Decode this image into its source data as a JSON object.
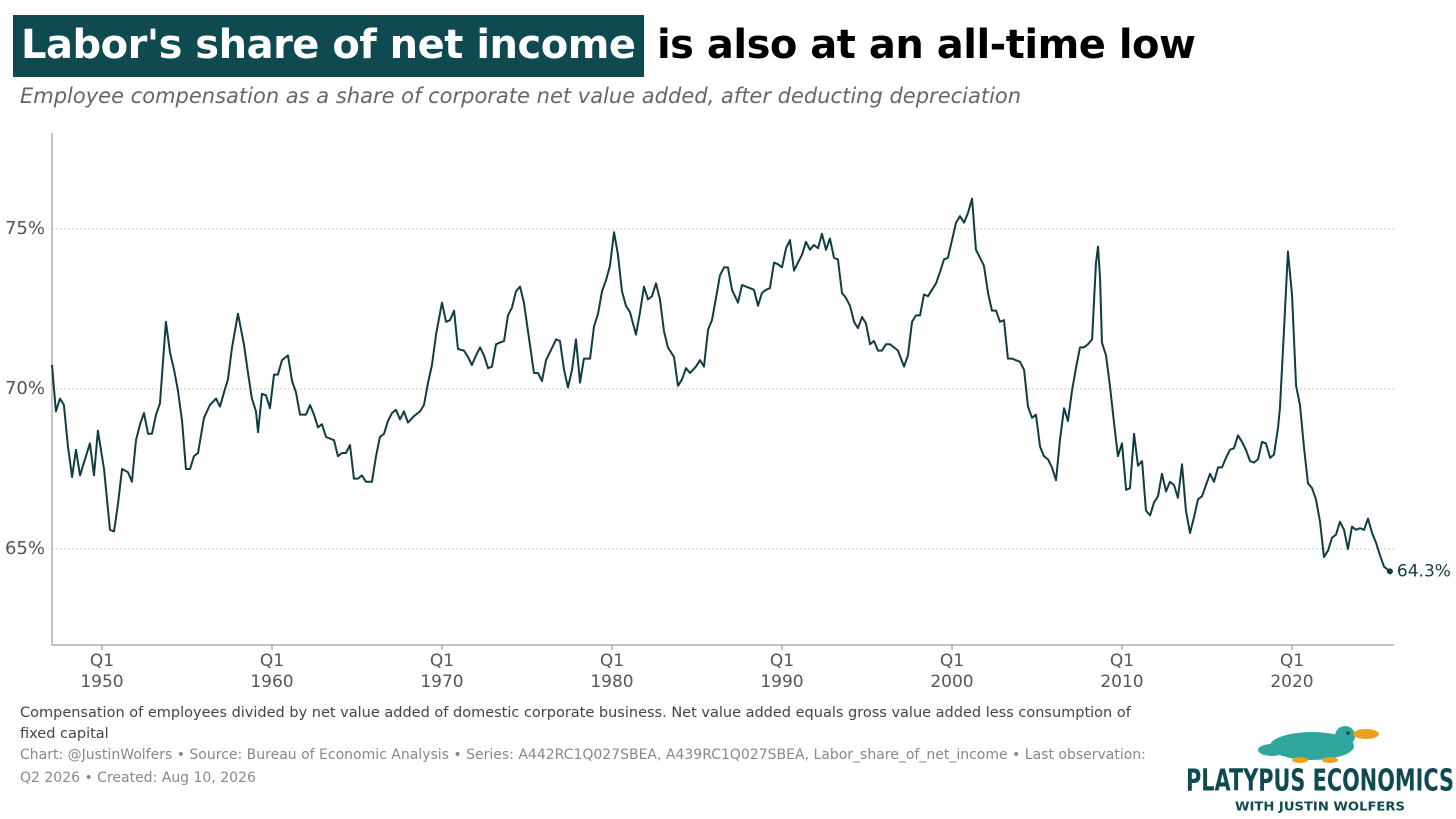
{
  "chart_data": {
    "type": "line",
    "title_highlight": "Labor's share of net income",
    "title_rest": " is also at an all-time low",
    "subtitle": "Employee compensation as a share of corporate net value added, after deducting depreciation",
    "note": "Compensation of employees divided by net value added of domestic corporate business. Net value added equals gross value added less consumption of fixed capital",
    "source": "Chart: @JustinWolfers • Source: Bureau of Economic Analysis • Series: A442RC1Q027SBEA, A439RC1Q027SBEA, Labor_share_of_net_income • Last observation: Q2 2026 • Created: Aug 10, 2026",
    "logo": {
      "name": "PLATYPUS ECONOMICS",
      "tagline": "WITH JUSTIN WOLFERS"
    },
    "color": "#0f3d42",
    "grid": true,
    "xlim": [
      1947.06,
      2026.0
    ],
    "ylim": [
      62,
      78
    ],
    "yticks": [
      {
        "value": 65,
        "label": "65%"
      },
      {
        "value": 70,
        "label": "70%"
      },
      {
        "value": 75,
        "label": "75%"
      }
    ],
    "xticks": [
      1950,
      1960,
      1970,
      1980,
      1990,
      2000,
      2010,
      2020
    ],
    "xtick_quarter": "Q1",
    "x": [
      1947.06,
      1947.29,
      1947.53,
      1947.76,
      1948,
      1948.24,
      1948.47,
      1948.71,
      1948.94,
      1949.29,
      1949.53,
      1949.76,
      1950.12,
      1950.47,
      1950.71,
      1950.94,
      1951.18,
      1951.53,
      1951.76,
      1952,
      1952.24,
      1952.47,
      1952.71,
      1952.94,
      1953.18,
      1953.41,
      1953.76,
      1954,
      1954.24,
      1954.47,
      1954.71,
      1954.94,
      1955.18,
      1955.41,
      1955.65,
      1956,
      1956.35,
      1956.71,
      1956.94,
      1957.18,
      1957.41,
      1957.65,
      1958,
      1958.35,
      1958.59,
      1958.82,
      1959.06,
      1959.18,
      1959.41,
      1959.65,
      1959.88,
      1960.12,
      1960.35,
      1960.59,
      1960.94,
      1961.18,
      1961.41,
      1961.65,
      1962,
      1962.24,
      1962.47,
      1962.71,
      1962.94,
      1963.18,
      1963.41,
      1963.65,
      1963.88,
      1964.12,
      1964.35,
      1964.59,
      1964.82,
      1965.06,
      1965.29,
      1965.53,
      1965.88,
      1966.12,
      1966.35,
      1966.59,
      1966.82,
      1967.06,
      1967.29,
      1967.53,
      1967.76,
      1968,
      1968.35,
      1968.71,
      1968.94,
      1969.18,
      1969.41,
      1969.65,
      1970,
      1970.24,
      1970.47,
      1970.71,
      1970.94,
      1971.29,
      1971.53,
      1971.76,
      1972,
      1972.24,
      1972.47,
      1972.71,
      1972.94,
      1973.18,
      1973.41,
      1973.65,
      1973.88,
      1974.12,
      1974.35,
      1974.59,
      1974.82,
      1975.06,
      1975.41,
      1975.65,
      1975.88,
      1976.12,
      1976.35,
      1976.71,
      1976.94,
      1977.18,
      1977.41,
      1977.65,
      1977.88,
      1978.12,
      1978.35,
      1978.71,
      1978.94,
      1979.18,
      1979.41,
      1979.65,
      1979.88,
      1980.12,
      1980.35,
      1980.59,
      1980.82,
      1981.06,
      1981.41,
      1981.65,
      1981.88,
      1982.12,
      1982.35,
      1982.59,
      1982.82,
      1983.06,
      1983.29,
      1983.65,
      1983.88,
      1984.12,
      1984.35,
      1984.59,
      1984.94,
      1985.18,
      1985.41,
      1985.65,
      1985.88,
      1986.12,
      1986.35,
      1986.59,
      1986.82,
      1987.06,
      1987.41,
      1987.65,
      1987.88,
      1988.12,
      1988.35,
      1988.59,
      1988.82,
      1989.06,
      1989.29,
      1989.53,
      1989.76,
      1990,
      1990.24,
      1990.47,
      1990.71,
      1990.94,
      1991.18,
      1991.41,
      1991.65,
      1991.88,
      1992.12,
      1992.35,
      1992.59,
      1992.82,
      1993.06,
      1993.29,
      1993.53,
      1993.76,
      1994,
      1994.24,
      1994.47,
      1994.71,
      1994.94,
      1995.18,
      1995.41,
      1995.65,
      1995.88,
      1996.12,
      1996.35,
      1996.59,
      1996.82,
      1997.18,
      1997.41,
      1997.65,
      1997.88,
      1998.12,
      1998.35,
      1998.59,
      1998.82,
      1999.06,
      1999.29,
      1999.53,
      1999.76,
      2000,
      2000.24,
      2000.47,
      2000.71,
      2000.94,
      2001.18,
      2001.41,
      2001.65,
      2001.88,
      2002.12,
      2002.35,
      2002.59,
      2002.82,
      2003.06,
      2003.29,
      2003.53,
      2003.76,
      2004,
      2004.24,
      2004.47,
      2004.71,
      2004.94,
      2005.18,
      2005.41,
      2005.65,
      2005.88,
      2006.12,
      2006.35,
      2006.59,
      2006.82,
      2007.06,
      2007.29,
      2007.53,
      2007.76,
      2008,
      2008.24,
      2008.47,
      2008.59,
      2008.71,
      2008.82,
      2009.06,
      2009.29,
      2009.53,
      2009.76,
      2010,
      2010.24,
      2010.47,
      2010.71,
      2010.94,
      2011.18,
      2011.41,
      2011.65,
      2011.88,
      2012.12,
      2012.35,
      2012.59,
      2012.82,
      2013.06,
      2013.29,
      2013.53,
      2013.76,
      2014,
      2014.24,
      2014.47,
      2014.71,
      2014.94,
      2015.18,
      2015.41,
      2015.65,
      2015.88,
      2016.12,
      2016.35,
      2016.59,
      2016.82,
      2017.06,
      2017.29,
      2017.53,
      2017.76,
      2018,
      2018.24,
      2018.47,
      2018.71,
      2018.94,
      2019.18,
      2019.29,
      2019.53,
      2019.76,
      2020,
      2020.24,
      2020.47,
      2020.71,
      2020.94,
      2021.18,
      2021.41,
      2021.65,
      2021.88,
      2022.12,
      2022.35,
      2022.59,
      2022.82,
      2023.06,
      2023.29,
      2023.53,
      2023.76,
      2024,
      2024.24,
      2024.47,
      2024.71,
      2024.94,
      2025.18,
      2025.41,
      2025.76
    ],
    "values": [
      70.75,
      69.3,
      69.7,
      69.5,
      68.2,
      67.25,
      68.1,
      67.3,
      67.7,
      68.3,
      67.3,
      68.7,
      67.5,
      65.6,
      65.55,
      66.4,
      67.5,
      67.4,
      67.1,
      68.4,
      68.9,
      69.25,
      68.6,
      68.6,
      69.2,
      69.55,
      72.1,
      71.15,
      70.6,
      69.95,
      69.0,
      67.5,
      67.5,
      67.9,
      68.0,
      69.1,
      69.5,
      69.7,
      69.45,
      69.9,
      70.3,
      71.3,
      72.35,
      71.4,
      70.5,
      69.7,
      69.3,
      68.65,
      69.85,
      69.8,
      69.4,
      70.45,
      70.45,
      70.9,
      71.05,
      70.25,
      69.9,
      69.2,
      69.2,
      69.5,
      69.2,
      68.8,
      68.9,
      68.5,
      68.45,
      68.4,
      67.9,
      68.0,
      68.0,
      68.25,
      67.2,
      67.2,
      67.3,
      67.1,
      67.1,
      67.9,
      68.5,
      68.6,
      69.0,
      69.25,
      69.35,
      69.05,
      69.3,
      68.95,
      69.15,
      69.3,
      69.5,
      70.2,
      70.75,
      71.7,
      72.7,
      72.1,
      72.15,
      72.45,
      71.25,
      71.2,
      71.0,
      70.75,
      71.05,
      71.3,
      71.05,
      70.65,
      70.7,
      71.4,
      71.45,
      71.5,
      72.3,
      72.55,
      73.05,
      73.2,
      72.7,
      71.8,
      70.5,
      70.5,
      70.25,
      70.9,
      71.15,
      71.55,
      71.5,
      70.6,
      70.05,
      70.6,
      71.55,
      70.2,
      70.95,
      70.95,
      71.95,
      72.35,
      73.05,
      73.4,
      73.85,
      74.9,
      74.2,
      73.05,
      72.6,
      72.4,
      71.7,
      72.4,
      73.2,
      72.8,
      72.9,
      73.3,
      72.8,
      71.8,
      71.3,
      71.0,
      70.1,
      70.3,
      70.65,
      70.5,
      70.7,
      70.9,
      70.7,
      71.85,
      72.15,
      72.85,
      73.55,
      73.8,
      73.8,
      73.1,
      72.7,
      73.25,
      73.2,
      73.15,
      73.1,
      72.6,
      73.0,
      73.1,
      73.15,
      73.95,
      73.9,
      73.8,
      74.4,
      74.65,
      73.7,
      73.95,
      74.2,
      74.6,
      74.35,
      74.5,
      74.4,
      74.85,
      74.35,
      74.7,
      74.1,
      74.05,
      73.0,
      72.85,
      72.6,
      72.1,
      71.9,
      72.25,
      72.05,
      71.4,
      71.5,
      71.2,
      71.2,
      71.4,
      71.4,
      71.3,
      71.2,
      70.7,
      71.05,
      72.1,
      72.3,
      72.3,
      72.95,
      72.9,
      73.1,
      73.3,
      73.65,
      74.05,
      74.1,
      74.65,
      75.2,
      75.4,
      75.2,
      75.5,
      75.95,
      74.35,
      74.1,
      73.85,
      73.0,
      72.45,
      72.45,
      72.1,
      72.15,
      70.95,
      70.95,
      70.9,
      70.85,
      70.6,
      69.45,
      69.1,
      69.2,
      68.2,
      67.9,
      67.8,
      67.55,
      67.15,
      68.4,
      69.4,
      69.0,
      69.95,
      70.65,
      71.3,
      71.3,
      71.4,
      71.55,
      73.95,
      74.45,
      73.45,
      71.45,
      71.05,
      70.1,
      68.95,
      67.9,
      68.3,
      66.85,
      66.9,
      68.6,
      67.6,
      67.75,
      66.2,
      66.05,
      66.45,
      66.65,
      67.35,
      66.8,
      67.1,
      67.0,
      66.6,
      67.65,
      66.2,
      65.5,
      66.0,
      66.55,
      66.65,
      67.0,
      67.35,
      67.1,
      67.55,
      67.55,
      67.85,
      68.1,
      68.15,
      68.55,
      68.35,
      68.1,
      67.75,
      67.7,
      67.8,
      68.35,
      68.3,
      67.85,
      67.95,
      68.8,
      69.4,
      71.85,
      74.3,
      72.95,
      70.1,
      69.5,
      68.15,
      67.05,
      66.9,
      66.55,
      65.85,
      64.75,
      64.95,
      65.35,
      65.45,
      65.85,
      65.6,
      65.0,
      65.7,
      65.6,
      65.65,
      65.6,
      65.95,
      65.5,
      65.2,
      64.8,
      64.45,
      64.3
    ],
    "value_labels": [
      null,
      null,
      null,
      null,
      null,
      null,
      null,
      null,
      null,
      null,
      null,
      null,
      null,
      null,
      null,
      null,
      null,
      null,
      null,
      null,
      null,
      null,
      null,
      null,
      null,
      null,
      null,
      null,
      null,
      null,
      null,
      null,
      null,
      null,
      null,
      null,
      null,
      null,
      null,
      null,
      null,
      null,
      null,
      null,
      null,
      null,
      null,
      null,
      null,
      null,
      null,
      null,
      null,
      null,
      null,
      null,
      null,
      null,
      null,
      null,
      null,
      null,
      null,
      null,
      null,
      null,
      null,
      null,
      null,
      null,
      null,
      null,
      null,
      null,
      null,
      null,
      null,
      null,
      null,
      null,
      null,
      null,
      null,
      null,
      null,
      null,
      null,
      null,
      null,
      null,
      null,
      null,
      null,
      null,
      null,
      null,
      null,
      null,
      null,
      null,
      null,
      null,
      null,
      null,
      null,
      null,
      null,
      null,
      null,
      null,
      null,
      null,
      null,
      null,
      null,
      null,
      null,
      null,
      null,
      null,
      null,
      null,
      null,
      null,
      null,
      null,
      null,
      null,
      null,
      null,
      null,
      null,
      null,
      null,
      null,
      null,
      null,
      null,
      null,
      null,
      null,
      null,
      null,
      null,
      null,
      null,
      null,
      null,
      null,
      null,
      null,
      null,
      null,
      null,
      null,
      null,
      null,
      null,
      null,
      null,
      null,
      null,
      null,
      null,
      null,
      null,
      null,
      null,
      null,
      null,
      null,
      null,
      null,
      null,
      null,
      null,
      null,
      null,
      null,
      null,
      null,
      null,
      null,
      null,
      null,
      null,
      null,
      null,
      null,
      null,
      null,
      null,
      null,
      null,
      null,
      null,
      null,
      null,
      null,
      null,
      null,
      null,
      null,
      null,
      null,
      null,
      null,
      null,
      null,
      null,
      null,
      null,
      null,
      null,
      null,
      null,
      null,
      null,
      null,
      null,
      null,
      null,
      null,
      null,
      null,
      null,
      null,
      null,
      null,
      null,
      null,
      null,
      null,
      null,
      null,
      null,
      null,
      null,
      null,
      null,
      null,
      null,
      null,
      null,
      null,
      null,
      null,
      null,
      null,
      null,
      null,
      null,
      null,
      null,
      null,
      null,
      null,
      null,
      null,
      null,
      null,
      null,
      null,
      null,
      null,
      null,
      null,
      null,
      null,
      null,
      null,
      null,
      null,
      null,
      null,
      null,
      null,
      null,
      null,
      null,
      null,
      null,
      null,
      null,
      null,
      null,
      null,
      null,
      null,
      null,
      null,
      null,
      null,
      null,
      null,
      null,
      null,
      null,
      null,
      null,
      null,
      null,
      null,
      null,
      null,
      null,
      null,
      null,
      null,
      null,
      null,
      null,
      null,
      null,
      null,
      null,
      null,
      null,
      null,
      null,
      null,
      null,
      null,
      null,
      "64.3%"
    ]
  }
}
